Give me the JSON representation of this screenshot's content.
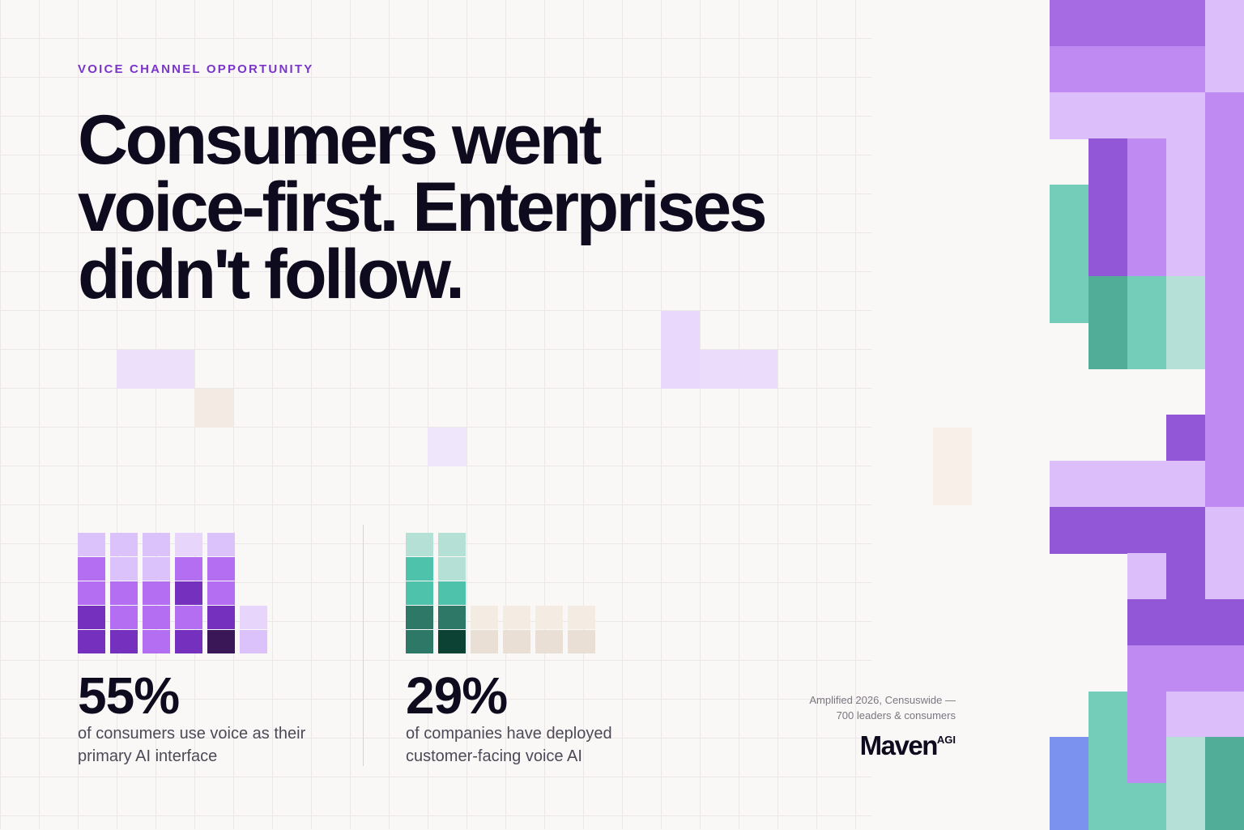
{
  "header": {
    "eyebrow": "VOICE CHANNEL OPPORTUNITY",
    "title_lines": [
      "Consumers went",
      "voice-first. Enterprises",
      "didn't follow."
    ]
  },
  "stats": [
    {
      "value": "55%",
      "caption": "of consumers use voice as their primary AI interface"
    },
    {
      "value": "29%",
      "caption": "of companies have deployed customer-facing voice AI"
    }
  ],
  "footer": {
    "source_lines": [
      "Amplified 2026, Censuswide —",
      "700 leaders & consumers"
    ],
    "brand": "Maven",
    "brand_sup": "AGI"
  }
}
